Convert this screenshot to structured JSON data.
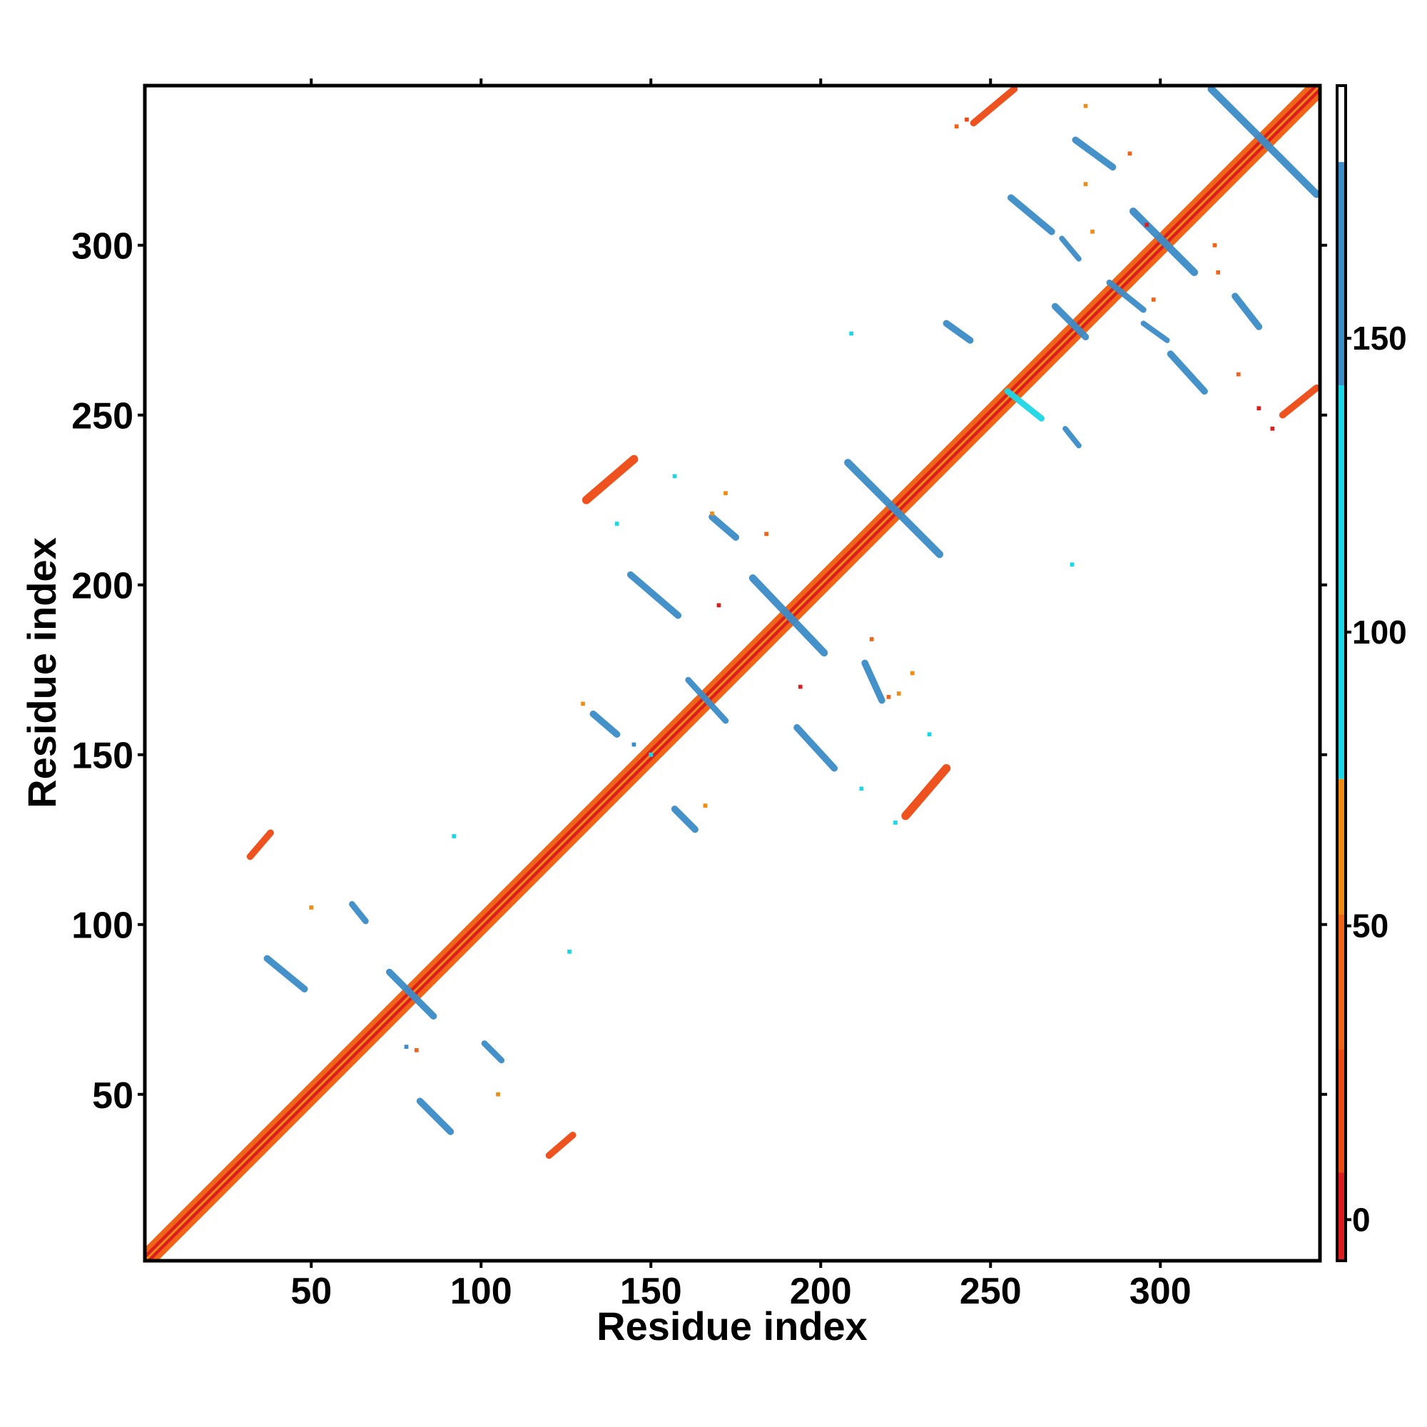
{
  "chart_data": {
    "type": "heatmap",
    "title": "",
    "xlabel": "Residue index",
    "ylabel": "Residue index",
    "xlim": [
      1,
      347
    ],
    "ylim": [
      1,
      347
    ],
    "x_ticks": [
      50,
      100,
      150,
      200,
      250,
      300
    ],
    "y_ticks": [
      50,
      100,
      150,
      200,
      250,
      300
    ],
    "colorbar": {
      "ticks": [
        0,
        50,
        100,
        150
      ],
      "range": [
        -7,
        193
      ],
      "bins": [
        {
          "from": -7,
          "to": 8,
          "color": "#dc1e1e"
        },
        {
          "from": 8,
          "to": 29,
          "color": "#ee4a14"
        },
        {
          "from": 29,
          "to": 52,
          "color": "#f06418"
        },
        {
          "from": 52,
          "to": 75,
          "color": "#f08c14"
        },
        {
          "from": 75,
          "to": 142,
          "color": "#1cd8e6"
        },
        {
          "from": 142,
          "to": 180,
          "color": "#3c8cc8"
        },
        {
          "from": 180,
          "to": 193,
          "color": "#ffffff"
        }
      ]
    },
    "diagonal": {
      "from": 1,
      "to": 347,
      "band_width": 3
    },
    "segments": [
      {
        "x1": 120,
        "y1": 32,
        "x2": 127,
        "y2": 38,
        "w": 2.0,
        "color": "#ee4a14"
      },
      {
        "x1": 32,
        "y1": 120,
        "x2": 38,
        "y2": 127,
        "w": 2.0,
        "color": "#ee4a14"
      },
      {
        "x1": 225,
        "y1": 132,
        "x2": 237,
        "y2": 146,
        "w": 2.5,
        "color": "#ee4a14"
      },
      {
        "x1": 131,
        "y1": 225,
        "x2": 145,
        "y2": 237,
        "w": 2.5,
        "color": "#ee4a14"
      },
      {
        "x1": 245,
        "y1": 336,
        "x2": 257,
        "y2": 346,
        "w": 2.0,
        "color": "#ee4a14"
      },
      {
        "x1": 336,
        "y1": 250,
        "x2": 346,
        "y2": 258,
        "w": 2.0,
        "color": "#ee4a14"
      },
      {
        "x1": 82,
        "y1": 48,
        "x2": 91,
        "y2": 39,
        "w": 2.0,
        "color": "#3c8cc8"
      },
      {
        "x1": 37,
        "y1": 90,
        "x2": 48,
        "y2": 81,
        "w": 2.0,
        "color": "#3c8cc8"
      },
      {
        "x1": 62,
        "y1": 106,
        "x2": 66,
        "y2": 101,
        "w": 1.8,
        "color": "#3c8cc8"
      },
      {
        "x1": 101,
        "y1": 65,
        "x2": 106,
        "y2": 60,
        "w": 1.8,
        "color": "#3c8cc8"
      },
      {
        "x1": 73,
        "y1": 86,
        "x2": 86,
        "y2": 73,
        "w": 2.0,
        "color": "#3c8cc8"
      },
      {
        "x1": 133,
        "y1": 162,
        "x2": 140,
        "y2": 156,
        "w": 2.0,
        "color": "#3c8cc8"
      },
      {
        "x1": 157,
        "y1": 134,
        "x2": 163,
        "y2": 128,
        "w": 2.0,
        "color": "#3c8cc8"
      },
      {
        "x1": 144,
        "y1": 203,
        "x2": 158,
        "y2": 191,
        "w": 2.0,
        "color": "#3c8cc8"
      },
      {
        "x1": 193,
        "y1": 158,
        "x2": 204,
        "y2": 146,
        "w": 2.0,
        "color": "#3c8cc8"
      },
      {
        "x1": 168,
        "y1": 220,
        "x2": 175,
        "y2": 214,
        "w": 2.0,
        "color": "#3c8cc8"
      },
      {
        "x1": 213,
        "y1": 177,
        "x2": 218,
        "y2": 166,
        "w": 2.0,
        "color": "#3c8cc8"
      },
      {
        "x1": 161,
        "y1": 172,
        "x2": 172,
        "y2": 160,
        "w": 1.8,
        "color": "#3c8cc8"
      },
      {
        "x1": 180,
        "y1": 202,
        "x2": 201,
        "y2": 180,
        "w": 2.2,
        "color": "#3c8cc8"
      },
      {
        "x1": 208,
        "y1": 236,
        "x2": 235,
        "y2": 209,
        "w": 2.2,
        "color": "#3c8cc8"
      },
      {
        "x1": 237,
        "y1": 277,
        "x2": 244,
        "y2": 272,
        "w": 2.0,
        "color": "#3c8cc8"
      },
      {
        "x1": 269,
        "y1": 282,
        "x2": 278,
        "y2": 273,
        "w": 2.0,
        "color": "#3c8cc8"
      },
      {
        "x1": 256,
        "y1": 314,
        "x2": 268,
        "y2": 304,
        "w": 2.0,
        "color": "#3c8cc8"
      },
      {
        "x1": 303,
        "y1": 268,
        "x2": 313,
        "y2": 257,
        "w": 2.0,
        "color": "#3c8cc8"
      },
      {
        "x1": 275,
        "y1": 331,
        "x2": 286,
        "y2": 323,
        "w": 2.0,
        "color": "#3c8cc8"
      },
      {
        "x1": 322,
        "y1": 285,
        "x2": 329,
        "y2": 276,
        "w": 2.0,
        "color": "#3c8cc8"
      },
      {
        "x1": 292,
        "y1": 310,
        "x2": 310,
        "y2": 292,
        "w": 2.2,
        "color": "#3c8cc8"
      },
      {
        "x1": 315,
        "y1": 346,
        "x2": 346,
        "y2": 315,
        "w": 2.2,
        "color": "#3c8cc8"
      },
      {
        "x1": 285,
        "y1": 289,
        "x2": 295,
        "y2": 281,
        "w": 1.8,
        "color": "#3c8cc8"
      },
      {
        "x1": 255,
        "y1": 257,
        "x2": 265,
        "y2": 249,
        "w": 1.8,
        "color": "#1cd8e6"
      },
      {
        "x1": 271,
        "y1": 302,
        "x2": 276,
        "y2": 296,
        "w": 1.6,
        "color": "#3c8cc8"
      },
      {
        "x1": 295,
        "y1": 277,
        "x2": 302,
        "y2": 272,
        "w": 1.6,
        "color": "#3c8cc8"
      },
      {
        "x1": 272,
        "y1": 246,
        "x2": 276,
        "y2": 241,
        "w": 1.6,
        "color": "#3c8cc8"
      }
    ],
    "points": [
      {
        "x": 50,
        "y": 105,
        "color": "#f08c14"
      },
      {
        "x": 92,
        "y": 126,
        "color": "#1cd8e6"
      },
      {
        "x": 126,
        "y": 92,
        "color": "#1cd8e6"
      },
      {
        "x": 105,
        "y": 50,
        "color": "#f08c14"
      },
      {
        "x": 78,
        "y": 64,
        "color": "#3c8cc8"
      },
      {
        "x": 81,
        "y": 63,
        "color": "#f06418"
      },
      {
        "x": 168,
        "y": 221,
        "color": "#f08c14"
      },
      {
        "x": 172,
        "y": 227,
        "color": "#f08c14"
      },
      {
        "x": 170,
        "y": 194,
        "color": "#dc1e1e"
      },
      {
        "x": 194,
        "y": 170,
        "color": "#dc1e1e"
      },
      {
        "x": 215,
        "y": 184,
        "color": "#f06418"
      },
      {
        "x": 220,
        "y": 167,
        "color": "#f06418"
      },
      {
        "x": 227,
        "y": 174,
        "color": "#f08c14"
      },
      {
        "x": 223,
        "y": 168,
        "color": "#f08c14"
      },
      {
        "x": 184,
        "y": 215,
        "color": "#f06418"
      },
      {
        "x": 209,
        "y": 274,
        "color": "#1cd8e6"
      },
      {
        "x": 274,
        "y": 206,
        "color": "#1cd8e6"
      },
      {
        "x": 240,
        "y": 335,
        "color": "#f06418"
      },
      {
        "x": 243,
        "y": 337,
        "color": "#ee4a14"
      },
      {
        "x": 278,
        "y": 341,
        "color": "#f08c14"
      },
      {
        "x": 296,
        "y": 306,
        "color": "#dc1e1e"
      },
      {
        "x": 316,
        "y": 300,
        "color": "#f06418"
      },
      {
        "x": 317,
        "y": 292,
        "color": "#f06418"
      },
      {
        "x": 323,
        "y": 262,
        "color": "#f06418"
      },
      {
        "x": 329,
        "y": 252,
        "color": "#dc1e1e"
      },
      {
        "x": 333,
        "y": 246,
        "color": "#dc1e1e"
      },
      {
        "x": 280,
        "y": 304,
        "color": "#f08c14"
      },
      {
        "x": 291,
        "y": 327,
        "color": "#f06418"
      },
      {
        "x": 278,
        "y": 318,
        "color": "#f08c14"
      },
      {
        "x": 298,
        "y": 284,
        "color": "#f06418"
      },
      {
        "x": 130,
        "y": 165,
        "color": "#f08c14"
      },
      {
        "x": 150,
        "y": 150,
        "color": "#1cd8e6"
      },
      {
        "x": 140,
        "y": 218,
        "color": "#1cd8e6"
      },
      {
        "x": 157,
        "y": 232,
        "color": "#1cd8e6"
      },
      {
        "x": 212,
        "y": 140,
        "color": "#1cd8e6"
      },
      {
        "x": 222,
        "y": 130,
        "color": "#1cd8e6"
      },
      {
        "x": 145,
        "y": 153,
        "color": "#3c8cc8"
      },
      {
        "x": 166,
        "y": 135,
        "color": "#f08c14"
      },
      {
        "x": 232,
        "y": 156,
        "color": "#1cd8e6"
      }
    ]
  }
}
